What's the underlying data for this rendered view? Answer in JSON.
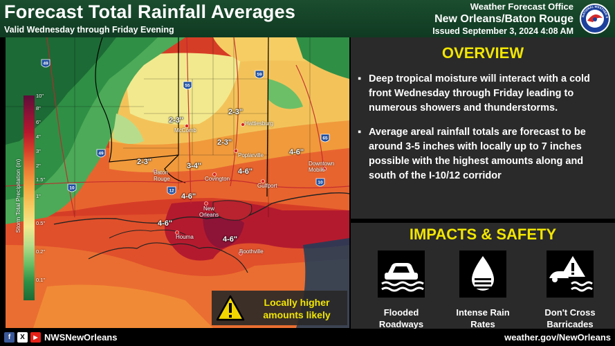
{
  "header": {
    "title": "Forecast Total Rainfall Averages",
    "subtitle": "Valid Wednesday through Friday Evening",
    "office_line1": "Weather Forecast Office",
    "office_line2": "New Orleans/Baton Rouge",
    "issued": "Issued September 3, 2024 4:08 AM",
    "logo_text": "NATIONAL WEATHER SERVICE"
  },
  "map": {
    "cities": [
      {
        "id": "mccomb",
        "label": "McComb"
      },
      {
        "id": "hattiesburg",
        "label": "Hattiesburg"
      },
      {
        "id": "baton-rouge",
        "label": "Baton\nRouge"
      },
      {
        "id": "covington",
        "label": "Covington"
      },
      {
        "id": "poplarville",
        "label": "Poplarville"
      },
      {
        "id": "gulfport",
        "label": "Gulfport"
      },
      {
        "id": "downtown-mobile",
        "label": "Downtown\nMobile"
      },
      {
        "id": "new-orleans",
        "label": "New\nOrleans"
      },
      {
        "id": "houma",
        "label": "Houma"
      },
      {
        "id": "boothville",
        "label": "Boothville"
      }
    ],
    "rain_labels": [
      "2-3\"",
      "2-3\"",
      "2-3\"",
      "2-3\"",
      "3-4\"",
      "4-6\"",
      "4-6\"",
      "4-6\"",
      "4-6\"",
      "4-6\""
    ],
    "highways": [
      "49",
      "55",
      "59",
      "65",
      "49",
      "10",
      "12",
      "10"
    ],
    "legend_title": "Storm Total Precipitation (in)",
    "legend_ticks": [
      "10\"",
      "8\"",
      "6\"",
      "4\"",
      "3\"",
      "2\"",
      "1.5\"",
      "1\"",
      "0.5\"",
      "0.2\"",
      "0.1\""
    ],
    "legend_colors": [
      "#5c0d3a",
      "#8d1337",
      "#b5182e",
      "#d6412a",
      "#ea7a34",
      "#f3a841",
      "#f6cd63",
      "#f2e98e",
      "#b7dd8c",
      "#6cbf67",
      "#2f8f45",
      "#1c6a35"
    ]
  },
  "callout": {
    "line1": "Locally higher",
    "line2": "amounts likely"
  },
  "overview": {
    "title": "OVERVIEW",
    "bullets": [
      "Deep tropical moisture will interact with a cold front Wednesday through Friday leading to numerous showers and thunderstorms.",
      "Average areal rainfall totals are forecast to be around 3-5 inches with locally up to 7 inches possible with the highest amounts along and south of the I-10/12 corridor"
    ]
  },
  "impacts": {
    "title": "IMPACTS & SAFETY",
    "items": [
      {
        "line1": "Flooded",
        "line2": "Roadways",
        "icon": "flooded-car-icon"
      },
      {
        "line1": "Intense Rain",
        "line2": "Rates",
        "icon": "raindrop-icon"
      },
      {
        "line1": "Don't Cross",
        "line2": "Barricades",
        "icon": "barricade-icon"
      }
    ]
  },
  "footer": {
    "handle": "NWSNewOrleans",
    "website": "weather.gov/NewOrleans",
    "social": [
      "f",
      "X",
      "▶"
    ]
  }
}
